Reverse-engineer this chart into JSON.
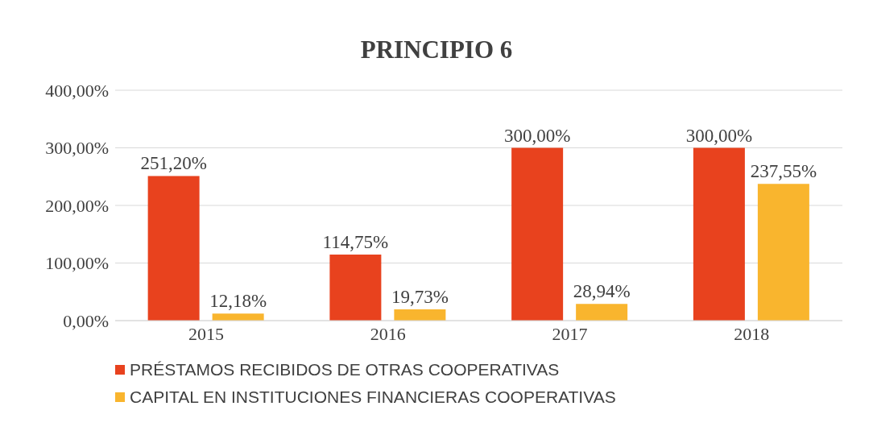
{
  "chart_data": {
    "type": "bar",
    "title": "PRINCIPIO 6",
    "categories": [
      "2015",
      "2016",
      "2017",
      "2018"
    ],
    "series": [
      {
        "name": "PRÉSTAMOS RECIBIDOS DE OTRAS COOPERATIVAS",
        "color": "#e8421e",
        "values": [
          251.2,
          114.75,
          300.0,
          300.0
        ],
        "value_labels": [
          "251,20%",
          "114,75%",
          "300,00%",
          "300,00%"
        ]
      },
      {
        "name": "CAPITAL EN INSTITUCIONES FINANCIERAS COOPERATIVAS",
        "color": "#f9b52e",
        "values": [
          12.18,
          19.73,
          28.94,
          237.55
        ],
        "value_labels": [
          "12,18%",
          "19,73%",
          "28,94%",
          "237,55%"
        ]
      }
    ],
    "ylim": [
      0,
      400
    ],
    "yticks": [
      {
        "value": 0,
        "label": "0,00%"
      },
      {
        "value": 100,
        "label": "100,00%"
      },
      {
        "value": 200,
        "label": "200,00%"
      },
      {
        "value": 300,
        "label": "300,00%"
      },
      {
        "value": 400,
        "label": "400,00%"
      }
    ],
    "grid": "y",
    "legend": "bottom"
  }
}
